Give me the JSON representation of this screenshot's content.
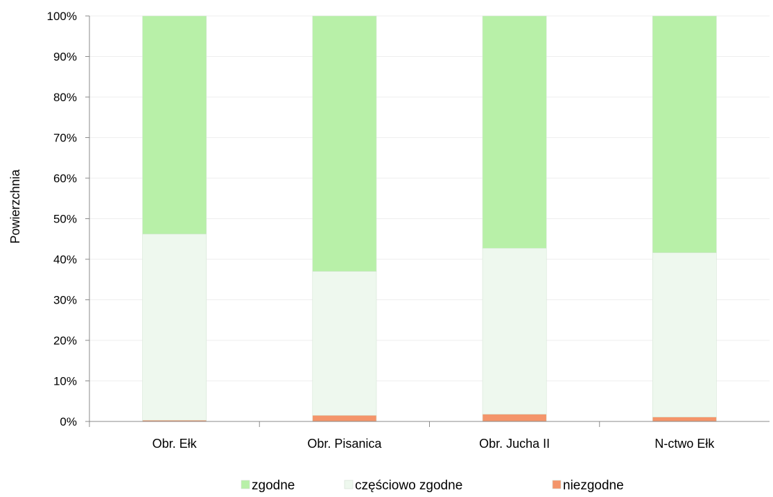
{
  "chart_data": {
    "type": "bar",
    "stacked": true,
    "percent": true,
    "title": "",
    "xlabel": "",
    "ylabel": "Powierzchnia",
    "ylim": [
      0,
      100
    ],
    "yticks": [
      "0%",
      "10%",
      "20%",
      "30%",
      "40%",
      "50%",
      "60%",
      "70%",
      "80%",
      "90%",
      "100%"
    ],
    "grid": true,
    "legend_position": "bottom",
    "categories": [
      "Obr. Ełk",
      "Obr. Pisanica",
      "Obr. Jucha II",
      "N-ctwo Ełk"
    ],
    "series": [
      {
        "name": "niezgodne",
        "color": "#f4956a",
        "values": [
          0.3,
          1.5,
          1.8,
          1.1
        ]
      },
      {
        "name": "częściowo zgodne",
        "color": "#eef8ee",
        "values": [
          45.9,
          35.5,
          40.9,
          40.5
        ]
      },
      {
        "name": "zgodne",
        "color": "#b8f0a8",
        "values": [
          53.8,
          63.0,
          57.3,
          58.4
        ]
      }
    ],
    "legend_order": [
      "zgodne",
      "częściowo zgodne",
      "niezgodne"
    ]
  }
}
